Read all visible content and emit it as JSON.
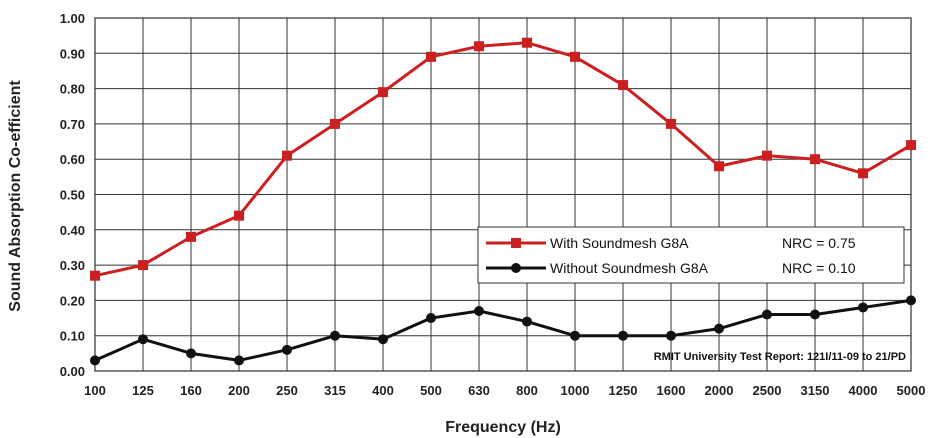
{
  "chart_data": {
    "type": "line",
    "xlabel": "Frequency (Hz)",
    "ylabel": "Sound Absorption Co-efficient",
    "categories": [
      "100",
      "125",
      "160",
      "200",
      "250",
      "315",
      "400",
      "500",
      "630",
      "800",
      "1000",
      "1250",
      "1600",
      "2000",
      "2500",
      "3150",
      "4000",
      "5000"
    ],
    "ylim": [
      0,
      1
    ],
    "yticks": [
      "0.00",
      "0.10",
      "0.20",
      "0.30",
      "0.40",
      "0.50",
      "0.60",
      "0.70",
      "0.80",
      "0.90",
      "1.00"
    ],
    "grid": true,
    "legend_position": "center-right",
    "series": [
      {
        "name": "With Soundmesh G8A",
        "nrc": "NRC = 0.75",
        "color": "#cc1f1f",
        "marker": "square",
        "values": [
          0.27,
          0.3,
          0.38,
          0.44,
          0.61,
          0.7,
          0.79,
          0.89,
          0.92,
          0.93,
          0.89,
          0.81,
          0.7,
          0.58,
          0.61,
          0.6,
          0.56,
          0.64
        ]
      },
      {
        "name": "Without Soundmesh G8A",
        "nrc": "NRC = 0.10",
        "color": "#111111",
        "marker": "circle",
        "values": [
          0.03,
          0.09,
          0.05,
          0.03,
          0.06,
          0.1,
          0.09,
          0.15,
          0.17,
          0.14,
          0.1,
          0.1,
          0.1,
          0.12,
          0.16,
          0.16,
          0.18,
          0.2
        ]
      }
    ],
    "annotation": "RMIT University Test Report:  121I/11-09 to 21/PD"
  }
}
